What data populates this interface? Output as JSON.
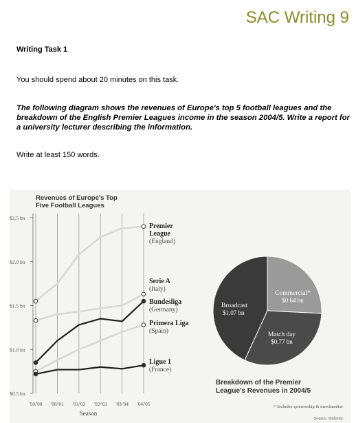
{
  "header": {
    "brand": "SAC Writing 9"
  },
  "task": {
    "title": "Writing Task 1",
    "instruction": "You should spend about 20 minutes on this task.",
    "prompt": "The following diagram shows the revenues of Europe's top 5 football leagues and the breakdown of the English Premier Leagues income in the season 2004/5. Write a report for a university lecturer describing the information.",
    "word_count": "Write at least 150 words."
  },
  "chart_data": [
    {
      "type": "line",
      "title": "Revenues of Europe's Top Five Football Leagues",
      "title_lines": [
        "Revenues of Europe's Top",
        "Five Football Leagues"
      ],
      "xlabel": "Season",
      "categories": [
        "'99/'00",
        "'00/'01",
        "'01/'02",
        "'02/'03",
        "'03/'04",
        "'04/'05"
      ],
      "y_ticks": [
        "$2.5 bn",
        "$2.0 bn",
        "$1.5 bn",
        "$1.0 bn",
        "$0.5 bn"
      ],
      "y_tick_values": [
        2.5,
        2.0,
        1.5,
        1.0,
        0.5
      ],
      "ylim": [
        0.5,
        2.5
      ],
      "grid": "vertical",
      "series": [
        {
          "name_lines": [
            "Premier",
            "League",
            "(England)"
          ],
          "color": "#ffffff",
          "values": [
            1.55,
            1.75,
            2.08,
            2.28,
            2.38,
            2.4
          ]
        },
        {
          "name_lines": [
            "Serie A",
            "(Italy)"
          ],
          "color": "#ffffff",
          "values": [
            1.33,
            1.4,
            1.43,
            1.47,
            1.5,
            1.63
          ]
        },
        {
          "name_lines": [
            "Bundesliga",
            "(Germany)"
          ],
          "color": "#2b2b2b",
          "values": [
            0.85,
            1.1,
            1.28,
            1.35,
            1.32,
            1.55
          ]
        },
        {
          "name_lines": [
            "Primera Liga",
            "(Spain)"
          ],
          "color": "#ffffff",
          "values": [
            0.75,
            0.88,
            1.0,
            1.1,
            1.2,
            1.28
          ]
        },
        {
          "name_lines": [
            "Ligue 1",
            "(France)"
          ],
          "color": "#2b2b2b",
          "values": [
            0.72,
            0.77,
            0.77,
            0.8,
            0.78,
            0.82
          ]
        }
      ]
    },
    {
      "type": "pie",
      "title": "Breakdown of the Premier League's Revenues in 2004/5",
      "title_lines": [
        "Breakdown of the Premier",
        "League's Revenues in 2004/5"
      ],
      "slices": [
        {
          "label": "Broadcast",
          "value_label": "$1.07 bn",
          "value": 1.07,
          "color": "#3a3a3a"
        },
        {
          "label": "Commercial*",
          "value_label": "$0.64 bn",
          "value": 0.64,
          "color": "#9a9a9a"
        },
        {
          "label": "Match day",
          "value_label": "$0.77 bn",
          "value": 0.77,
          "color": "#4a4a4a"
        }
      ],
      "footnote": "* Includes sponsorship & merchandise",
      "source": "Source: Deloitte"
    }
  ]
}
